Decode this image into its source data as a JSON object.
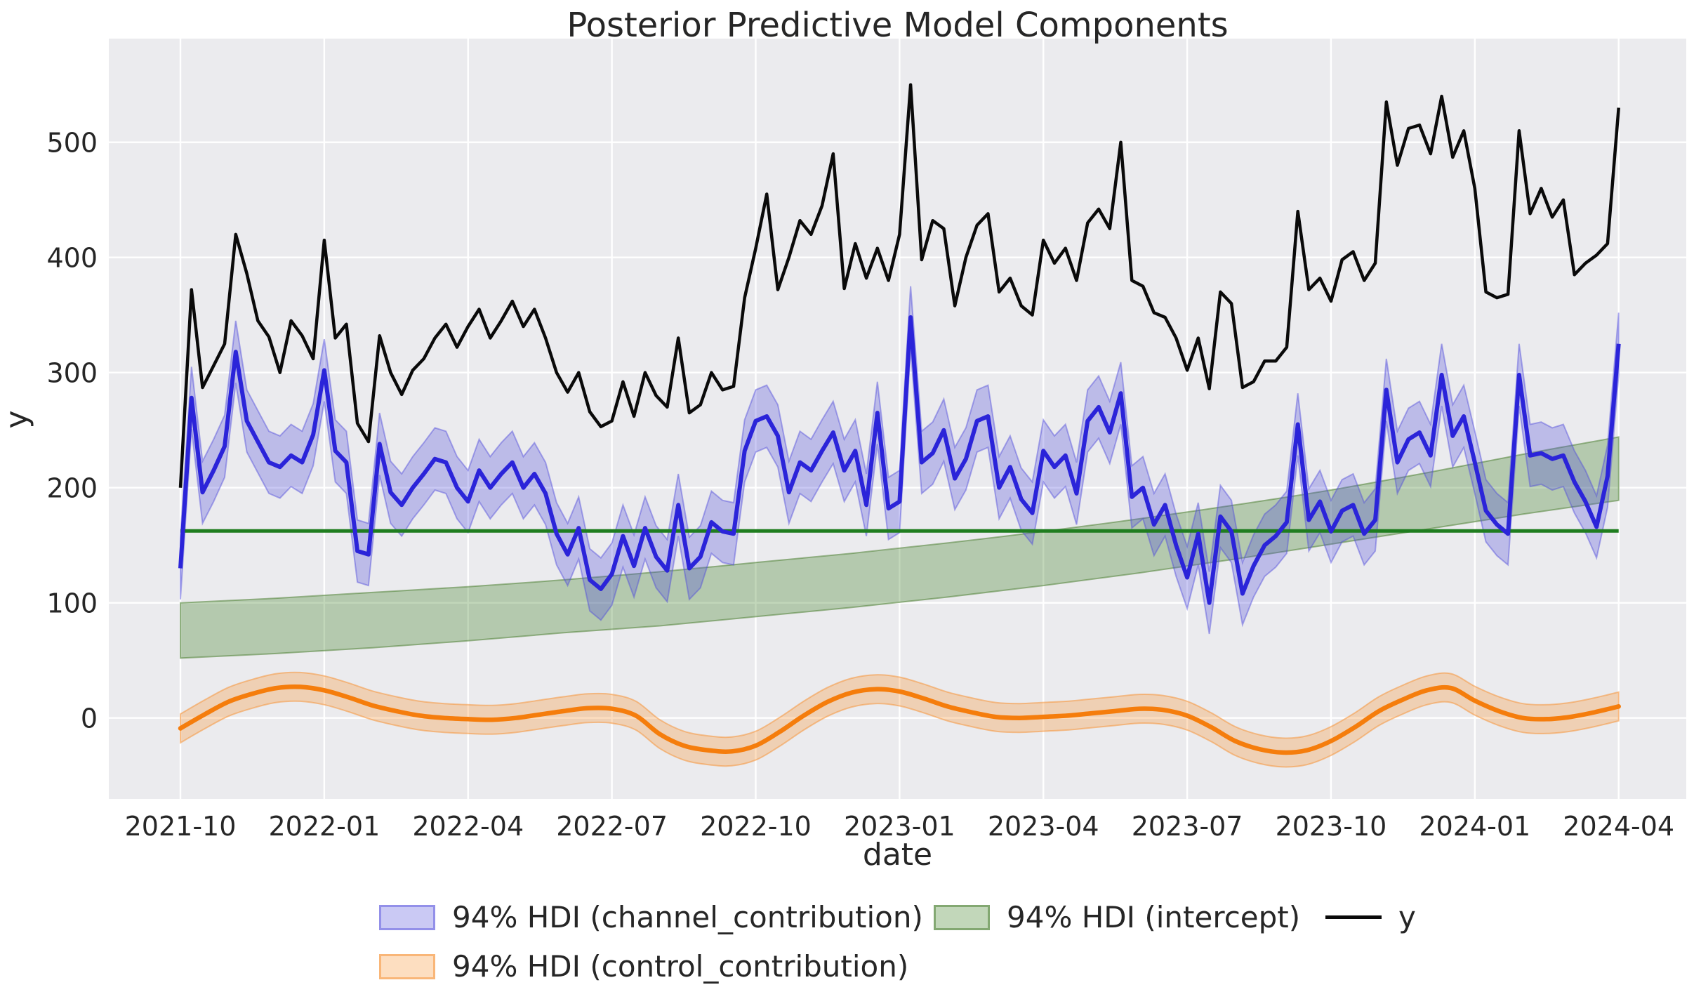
{
  "title": "Posterior Predictive Model Components",
  "axes": {
    "xlabel": "date",
    "ylabel": "y",
    "x_tick_labels": [
      "2021-10",
      "2022-01",
      "2022-04",
      "2022-07",
      "2022-10",
      "2023-01",
      "2023-04",
      "2023-07",
      "2023-10",
      "2024-01",
      "2024-04"
    ],
    "x_tick_months": [
      0,
      3,
      6,
      9,
      12,
      15,
      18,
      21,
      24,
      27,
      30
    ],
    "y_tick_labels": [
      "0",
      "100",
      "200",
      "300",
      "400",
      "500"
    ],
    "y_tick_values": [
      0,
      100,
      200,
      300,
      400,
      500
    ]
  },
  "legend": {
    "items": [
      {
        "label": "94% HDI (channel_contribution)",
        "swatch": "patch",
        "key": "channel"
      },
      {
        "label": "94% HDI (intercept)",
        "swatch": "patch",
        "key": "intercept"
      },
      {
        "label": "y",
        "swatch": "line",
        "key": "y"
      },
      {
        "label": "94% HDI (control_contribution)",
        "swatch": "patch",
        "key": "control"
      }
    ]
  },
  "colors": {
    "background": "#ffffff",
    "plot_background": "#ebebee",
    "gridline": "#ffffff",
    "text": "#262626",
    "y_line": "#0a0a0a",
    "channel_line": "#2b24d9",
    "channel_band_fill": "rgba(80,75,220,0.30)",
    "channel_band_edge": "rgba(80,75,220,0.45)",
    "intercept_line": "#1f7d1f",
    "intercept_band_fill": "rgba(70,135,45,0.33)",
    "intercept_band_edge": "rgba(80,130,55,0.55)",
    "control_line": "#f57d0c",
    "control_band_fill": "rgba(250,145,45,0.30)",
    "control_band_edge": "rgba(245,150,60,0.55)"
  },
  "chart_data": {
    "type": "line",
    "title": "Posterior Predictive Model Components",
    "xlabel": "date",
    "ylabel": "y",
    "x_axis": {
      "start": "2021-10",
      "end": "2024-04",
      "frequency": "weekly",
      "n_points": 131,
      "unit": "months_from_2021-10"
    },
    "ylim": [
      -70,
      590
    ],
    "grid": true,
    "legend_position": "lower center",
    "series": [
      {
        "name": "y",
        "kind": "observed_line",
        "values": [
          200,
          372,
          287,
          306,
          325,
          420,
          386,
          345,
          331,
          300,
          345,
          332,
          312,
          415,
          330,
          342,
          256,
          240,
          332,
          300,
          281,
          302,
          312,
          330,
          342,
          322,
          340,
          355,
          330,
          345,
          362,
          340,
          355,
          330,
          300,
          283,
          300,
          266,
          253,
          258,
          292,
          262,
          300,
          280,
          270,
          330,
          265,
          272,
          300,
          285,
          288,
          365,
          408,
          455,
          372,
          400,
          432,
          420,
          445,
          490,
          373,
          412,
          382,
          408,
          380,
          420,
          550,
          398,
          432,
          425,
          358,
          400,
          428,
          438,
          370,
          382,
          358,
          350,
          415,
          395,
          408,
          380,
          430,
          442,
          425,
          500,
          380,
          375,
          352,
          348,
          330,
          302,
          330,
          286,
          370,
          360,
          287,
          292,
          310,
          310,
          322,
          440,
          372,
          382,
          362,
          398,
          405,
          380,
          395,
          535,
          480,
          512,
          515,
          490,
          540,
          487,
          510,
          460,
          370,
          365,
          368,
          510,
          438,
          460,
          435,
          450,
          385,
          395,
          402,
          412,
          530
        ]
      },
      {
        "name": "94% HDI (channel_contribution)",
        "kind": "mean_line_with_hdi_band",
        "hdi_half_width": 27,
        "values": [
          130,
          278,
          196,
          215,
          236,
          318,
          258,
          240,
          222,
          218,
          228,
          222,
          246,
          302,
          232,
          222,
          145,
          142,
          238,
          196,
          185,
          200,
          212,
          225,
          222,
          200,
          188,
          215,
          200,
          212,
          222,
          200,
          212,
          195,
          160,
          142,
          165,
          120,
          112,
          125,
          158,
          132,
          165,
          140,
          128,
          185,
          130,
          140,
          170,
          162,
          160,
          232,
          258,
          262,
          245,
          196,
          222,
          215,
          232,
          248,
          215,
          232,
          185,
          265,
          182,
          188,
          348,
          222,
          230,
          250,
          208,
          225,
          258,
          262,
          200,
          218,
          190,
          178,
          232,
          218,
          228,
          195,
          258,
          270,
          248,
          282,
          192,
          200,
          168,
          185,
          150,
          122,
          160,
          100,
          175,
          162,
          108,
          132,
          150,
          158,
          170,
          255,
          172,
          188,
          162,
          180,
          185,
          160,
          172,
          285,
          222,
          242,
          248,
          228,
          298,
          245,
          262,
          222,
          180,
          168,
          160,
          298,
          228,
          230,
          225,
          228,
          205,
          188,
          166,
          210,
          325
        ]
      },
      {
        "name": "94% HDI (intercept)",
        "kind": "constant_line_with_hdi_band",
        "line_value": 162.5,
        "band_t_months": [
          0,
          2,
          4,
          6,
          8,
          10,
          12,
          14,
          16,
          18,
          20,
          22,
          24,
          26,
          28,
          30
        ],
        "band_lower": [
          52,
          56,
          61,
          67,
          74,
          80,
          88,
          96,
          105,
          115,
          126,
          138,
          151,
          164,
          177,
          189
        ],
        "band_upper": [
          100,
          104,
          109,
          114,
          120,
          127,
          135,
          143,
          152,
          162,
          173,
          185,
          198,
          213,
          229,
          244
        ]
      },
      {
        "name": "94% HDI (control_contribution)",
        "kind": "mean_line_with_hdi_band",
        "hdi_half_width": 12.5,
        "t_months_step": 0.5,
        "values": [
          -9,
          3,
          14,
          21,
          26,
          27,
          24,
          18,
          11,
          6,
          2,
          0,
          -1,
          -1.5,
          0,
          3,
          6,
          8.5,
          8,
          2,
          -14,
          -24,
          -28,
          -29,
          -24,
          -12,
          2,
          14,
          22,
          25,
          23,
          17,
          10,
          5,
          1,
          0,
          1,
          2,
          4,
          6,
          8,
          7,
          2,
          -8,
          -20,
          -27,
          -30,
          -28,
          -20,
          -8,
          6,
          16,
          24,
          26,
          15,
          6,
          0,
          -1,
          1,
          5,
          10
        ]
      }
    ]
  }
}
